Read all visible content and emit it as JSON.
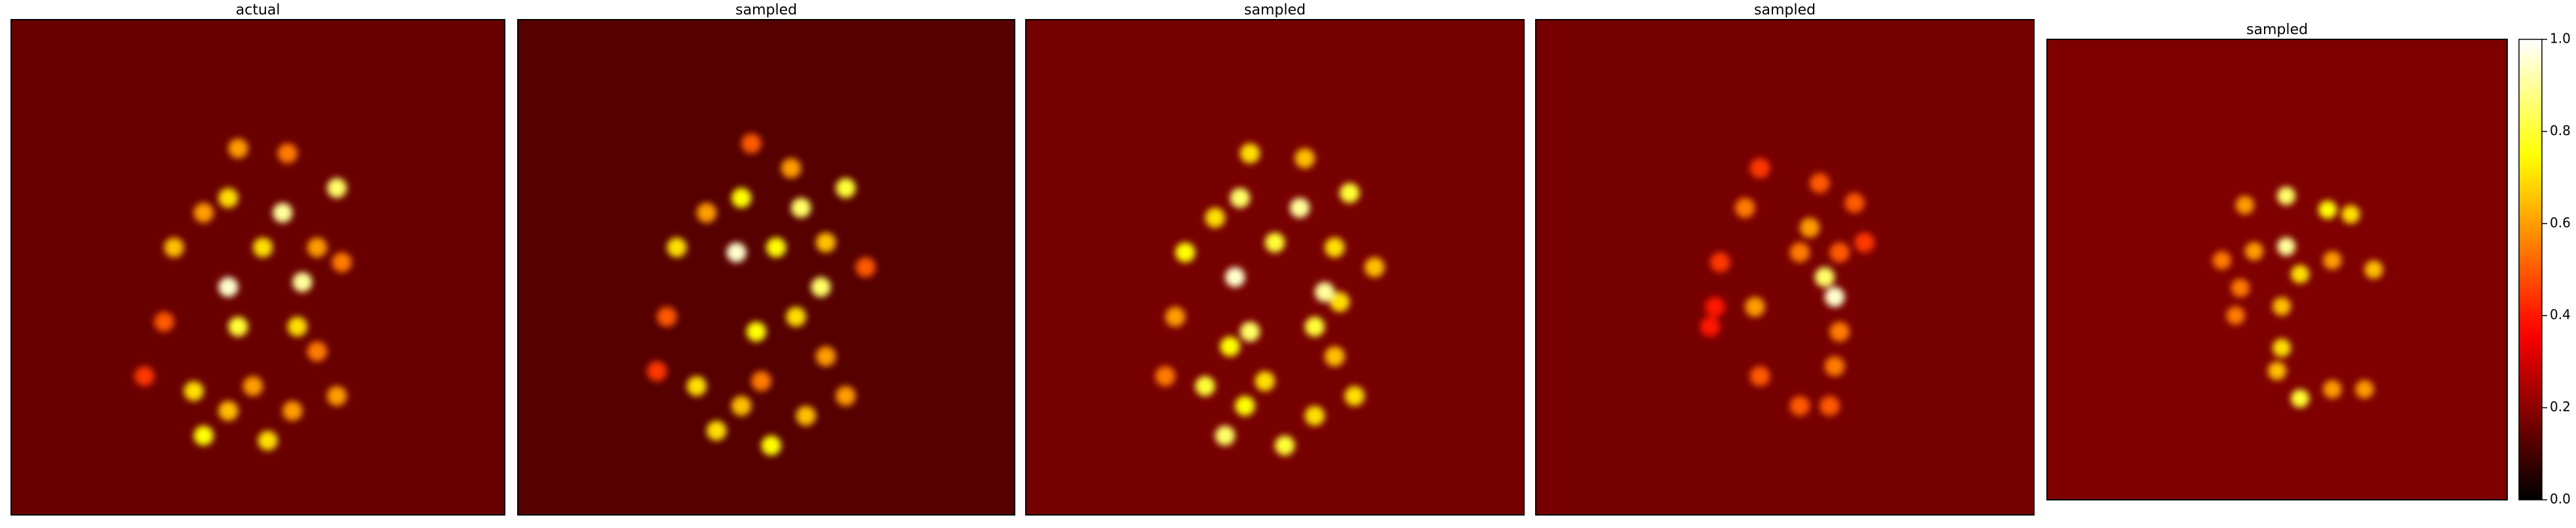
{
  "chart_data": [
    {
      "type": "heatmap",
      "title": "actual",
      "background": 0.15,
      "points": {
        "x": [
          0.46,
          0.56,
          0.44,
          0.55,
          0.66,
          0.44,
          0.59,
          0.33,
          0.39,
          0.51,
          0.62,
          0.67,
          0.37,
          0.39,
          0.44,
          0.52,
          0.57,
          0.66,
          0.62,
          0.31,
          0.27,
          0.49,
          0.46,
          0.58
        ],
        "y": [
          0.26,
          0.27,
          0.36,
          0.39,
          0.34,
          0.54,
          0.53,
          0.46,
          0.39,
          0.46,
          0.46,
          0.49,
          0.75,
          0.84,
          0.79,
          0.85,
          0.79,
          0.76,
          0.67,
          0.61,
          0.72,
          0.74,
          0.62,
          0.62
        ],
        "values": [
          0.6,
          0.55,
          0.7,
          0.9,
          0.85,
          0.95,
          0.9,
          0.65,
          0.6,
          0.7,
          0.6,
          0.55,
          0.7,
          0.75,
          0.65,
          0.7,
          0.6,
          0.6,
          0.55,
          0.5,
          0.45,
          0.6,
          0.8,
          0.7
        ]
      }
    },
    {
      "type": "heatmap",
      "title": "sampled",
      "background": 0.125,
      "points": {
        "x": [
          0.47,
          0.55,
          0.45,
          0.57,
          0.66,
          0.44,
          0.61,
          0.32,
          0.38,
          0.52,
          0.62,
          0.7,
          0.36,
          0.4,
          0.45,
          0.51,
          0.58,
          0.66,
          0.62,
          0.3,
          0.28,
          0.49,
          0.48,
          0.56
        ],
        "y": [
          0.25,
          0.3,
          0.36,
          0.38,
          0.34,
          0.47,
          0.54,
          0.46,
          0.39,
          0.46,
          0.45,
          0.5,
          0.74,
          0.83,
          0.78,
          0.86,
          0.8,
          0.76,
          0.68,
          0.6,
          0.71,
          0.73,
          0.63,
          0.6
        ],
        "values": [
          0.5,
          0.6,
          0.75,
          0.85,
          0.8,
          0.95,
          0.85,
          0.7,
          0.6,
          0.75,
          0.65,
          0.5,
          0.7,
          0.7,
          0.65,
          0.75,
          0.65,
          0.6,
          0.6,
          0.5,
          0.45,
          0.55,
          0.75,
          0.7
        ]
      }
    },
    {
      "type": "heatmap",
      "title": "sampled",
      "background": 0.17,
      "points": {
        "x": [
          0.45,
          0.56,
          0.43,
          0.55,
          0.65,
          0.42,
          0.6,
          0.32,
          0.38,
          0.5,
          0.62,
          0.7,
          0.36,
          0.4,
          0.44,
          0.52,
          0.58,
          0.66,
          0.62,
          0.3,
          0.28,
          0.48,
          0.45,
          0.58,
          0.41,
          0.63
        ],
        "y": [
          0.27,
          0.28,
          0.36,
          0.38,
          0.35,
          0.52,
          0.55,
          0.47,
          0.4,
          0.45,
          0.46,
          0.5,
          0.74,
          0.84,
          0.78,
          0.86,
          0.8,
          0.76,
          0.68,
          0.6,
          0.72,
          0.73,
          0.63,
          0.62,
          0.66,
          0.57
        ],
        "values": [
          0.7,
          0.65,
          0.85,
          0.9,
          0.8,
          0.95,
          0.9,
          0.75,
          0.7,
          0.8,
          0.7,
          0.65,
          0.8,
          0.85,
          0.75,
          0.8,
          0.7,
          0.7,
          0.65,
          0.6,
          0.55,
          0.7,
          0.85,
          0.8,
          0.75,
          0.7
        ]
      }
    },
    {
      "type": "heatmap",
      "title": "sampled",
      "background": 0.17,
      "points": {
        "x": [
          0.45,
          0.57,
          0.42,
          0.55,
          0.64,
          0.58,
          0.6,
          0.44,
          0.37,
          0.53,
          0.61,
          0.66,
          0.45,
          0.6,
          0.53,
          0.59,
          0.36,
          0.35,
          0.61
        ],
        "y": [
          0.3,
          0.33,
          0.38,
          0.42,
          0.37,
          0.52,
          0.56,
          0.58,
          0.49,
          0.47,
          0.47,
          0.45,
          0.72,
          0.7,
          0.78,
          0.78,
          0.58,
          0.62,
          0.63
        ],
        "values": [
          0.45,
          0.5,
          0.55,
          0.6,
          0.5,
          0.85,
          0.95,
          0.6,
          0.45,
          0.55,
          0.5,
          0.45,
          0.5,
          0.55,
          0.5,
          0.5,
          0.4,
          0.4,
          0.55
        ]
      }
    },
    {
      "type": "heatmap",
      "title": "sampled",
      "background": 0.18,
      "points": {
        "x": [
          0.43,
          0.52,
          0.52,
          0.61,
          0.66,
          0.71,
          0.38,
          0.45,
          0.55,
          0.62,
          0.51,
          0.41,
          0.5,
          0.55,
          0.62,
          0.69,
          0.51,
          0.42
        ],
        "y": [
          0.36,
          0.34,
          0.45,
          0.37,
          0.38,
          0.5,
          0.48,
          0.46,
          0.51,
          0.48,
          0.58,
          0.6,
          0.72,
          0.78,
          0.76,
          0.76,
          0.67,
          0.54
        ],
        "values": [
          0.6,
          0.85,
          0.9,
          0.75,
          0.7,
          0.65,
          0.55,
          0.6,
          0.7,
          0.6,
          0.65,
          0.55,
          0.65,
          0.8,
          0.6,
          0.6,
          0.7,
          0.55
        ]
      }
    },
    {
      "type": "colorbar",
      "lim": [
        0,
        1
      ],
      "ticks": [
        {
          "value": 0,
          "label": "0.0"
        },
        {
          "value": 0.2,
          "label": "0.2"
        },
        {
          "value": 0.4,
          "label": "0.4"
        },
        {
          "value": 0.6,
          "label": "0.6"
        },
        {
          "value": 0.8,
          "label": "0.8"
        },
        {
          "value": 1,
          "label": "1.0"
        }
      ]
    }
  ]
}
